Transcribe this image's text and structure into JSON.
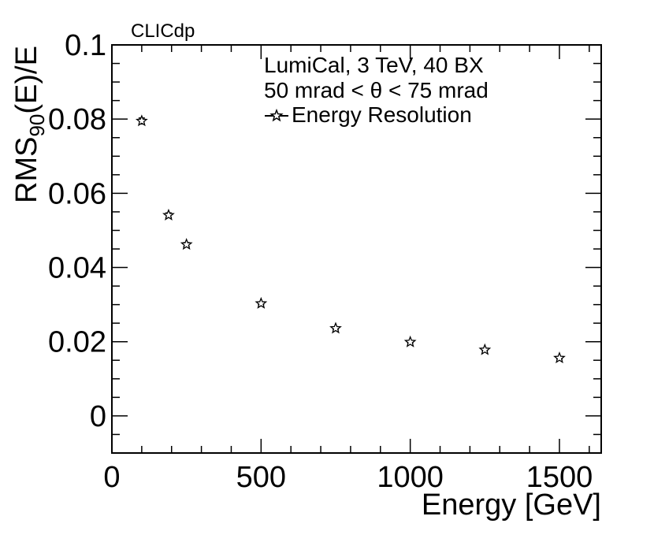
{
  "chart_data": {
    "type": "scatter",
    "tag": "CLICdp",
    "legend": {
      "lines": [
        "LumiCal, 3 TeV, 40 BX",
        "50 mrad < θ < 75 mrad"
      ],
      "entry": "Energy Resolution",
      "placement": "top-right"
    },
    "xlabel": "Energy [GeV]",
    "ylabel": {
      "main": "RMS",
      "sub": "90",
      "suffix": "(E)/E"
    },
    "xlim": [
      0,
      1640
    ],
    "ylim": [
      -0.01,
      0.1
    ],
    "x_ticks": [
      {
        "value": 0,
        "label": "0"
      },
      {
        "value": 500,
        "label": "500"
      },
      {
        "value": 1000,
        "label": "1000"
      },
      {
        "value": 1500,
        "label": "1500"
      }
    ],
    "y_ticks": [
      {
        "value": 0,
        "label": "0"
      },
      {
        "value": 0.02,
        "label": "0.02"
      },
      {
        "value": 0.04,
        "label": "0.04"
      },
      {
        "value": 0.06,
        "label": "0.06"
      },
      {
        "value": 0.08,
        "label": "0.08"
      },
      {
        "value": 0.1,
        "label": "0.1"
      }
    ],
    "x_minor_step": 100,
    "y_minor_step": 0.005,
    "series": [
      {
        "name": "Energy Resolution",
        "marker": "open-star",
        "points": [
          {
            "x": 100,
            "y": 0.0795,
            "err": 0.0008
          },
          {
            "x": 190,
            "y": 0.0541,
            "err": 0.0006
          },
          {
            "x": 250,
            "y": 0.0462,
            "err": 0.0005
          },
          {
            "x": 500,
            "y": 0.0303,
            "err": 0.0003
          },
          {
            "x": 750,
            "y": 0.0236,
            "err": 0.0002
          },
          {
            "x": 1000,
            "y": 0.0199,
            "err": 0.0002
          },
          {
            "x": 1250,
            "y": 0.0178,
            "err": 0.0002
          },
          {
            "x": 1500,
            "y": 0.0156,
            "err": 0.0002
          }
        ]
      }
    ]
  }
}
